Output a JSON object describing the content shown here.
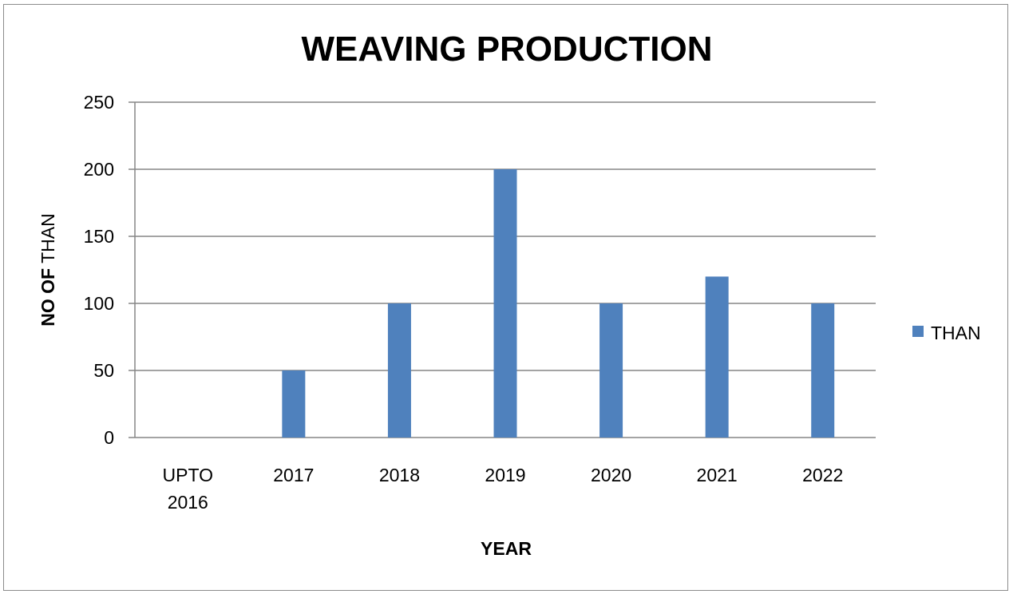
{
  "chart_data": {
    "type": "bar",
    "title": "WEAVING PRODUCTION",
    "categories": [
      [
        "UPTO",
        "2016"
      ],
      [
        "2017"
      ],
      [
        "2018"
      ],
      [
        "2019"
      ],
      [
        "2020"
      ],
      [
        "2021"
      ],
      [
        "2022"
      ]
    ],
    "series": [
      {
        "name": "THAN",
        "color": "#4F81BD",
        "values": [
          0,
          50,
          100,
          200,
          100,
          120,
          100
        ]
      }
    ],
    "xlabel": "YEAR",
    "ylabel_bold": "NO OF",
    "ylabel_regular": " THAN",
    "ylim": [
      0,
      250
    ],
    "yticks": [
      "0",
      "50",
      "100",
      "150",
      "200",
      "250"
    ],
    "grid": true,
    "legend_position": "right"
  }
}
